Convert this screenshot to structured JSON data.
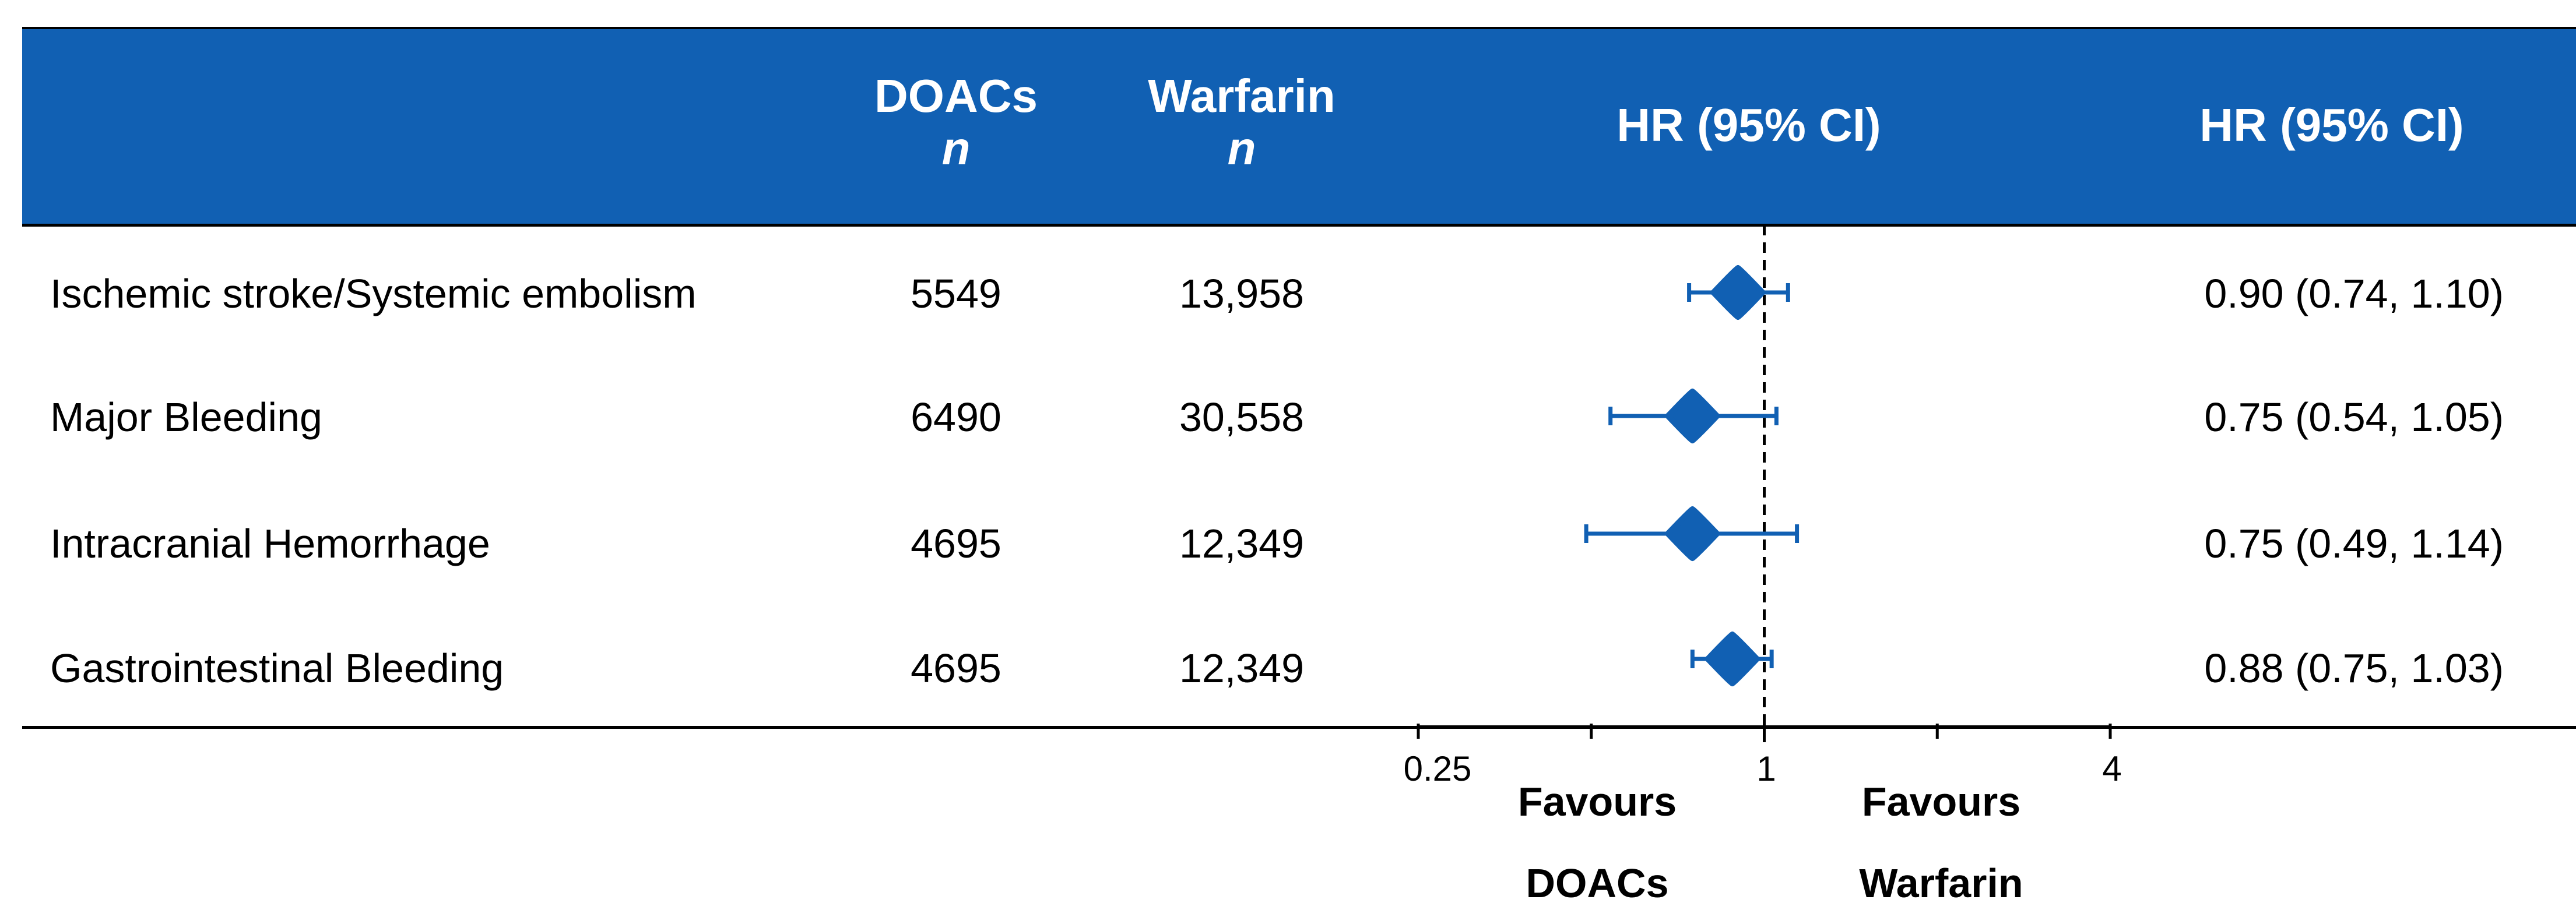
{
  "chart_data": {
    "type": "forest",
    "scale": "log2",
    "xlim": [
      0.25,
      4
    ],
    "reference_line": 1,
    "columns": {
      "doacs": "DOACs",
      "warfarin": "Warfarin",
      "n": "n",
      "hr_plot": "HR (95% CI)",
      "hr_text": "HR (95% CI)"
    },
    "rows": [
      {
        "label": "Ischemic stroke/Systemic embolism",
        "doacs_n": "5549",
        "warfarin_n": "13,958",
        "hr": 0.9,
        "lo": 0.74,
        "hi": 1.1,
        "hr_text": "0.90 (0.74, 1.10)"
      },
      {
        "label": "Major Bleeding",
        "doacs_n": "6490",
        "warfarin_n": "30,558",
        "hr": 0.75,
        "lo": 0.54,
        "hi": 1.05,
        "hr_text": "0.75 (0.54, 1.05)"
      },
      {
        "label": "Intracranial Hemorrhage",
        "doacs_n": "4695",
        "warfarin_n": "12,349",
        "hr": 0.75,
        "lo": 0.49,
        "hi": 1.14,
        "hr_text": "0.75 (0.49, 1.14)"
      },
      {
        "label": "Gastrointestinal Bleeding",
        "doacs_n": "4695",
        "warfarin_n": "12,349",
        "hr": 0.88,
        "lo": 0.75,
        "hi": 1.03,
        "hr_text": "0.88 (0.75, 1.03)"
      }
    ],
    "x_ticks": [
      "0.25",
      "1",
      "4"
    ],
    "favours_left": [
      "Favours",
      "DOACs"
    ],
    "favours_right": [
      "Favours",
      "Warfarin"
    ],
    "colors": {
      "header": "#1160B3",
      "marker": "#1160B3"
    }
  }
}
